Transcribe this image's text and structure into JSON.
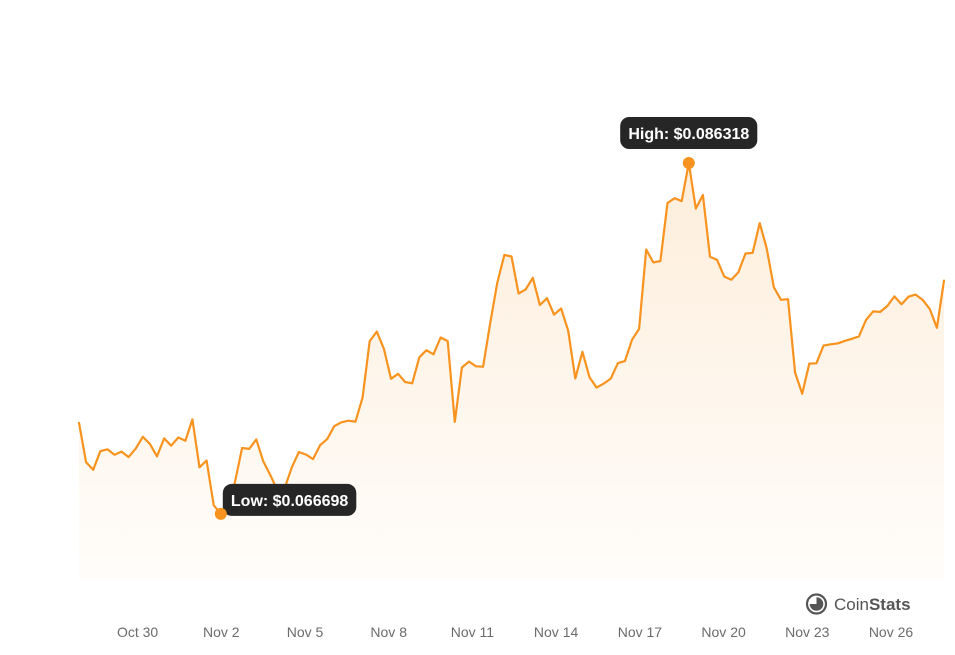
{
  "chart_data": {
    "type": "area",
    "x_ticks": [
      "Oct 30",
      "Nov 2",
      "Nov 5",
      "Nov 8",
      "Nov 11",
      "Nov 14",
      "Nov 17",
      "Nov 20",
      "Nov 23",
      "Nov 26"
    ],
    "x_tick_days": [
      2,
      5,
      8,
      11,
      14,
      17,
      20,
      23,
      26,
      29
    ],
    "x_start_day": -0.1,
    "x_end_day": 30.9,
    "series": [
      {
        "values": [
          0.07179,
          0.06958,
          0.06916,
          0.0702,
          0.07031,
          0.07,
          0.07018,
          0.06987,
          0.07035,
          0.07101,
          0.07061,
          0.06991,
          0.07092,
          0.07051,
          0.07097,
          0.07079,
          0.07198,
          0.0693,
          0.06968,
          0.06718,
          0.0667,
          0.06694,
          0.06849,
          0.07038,
          0.07033,
          0.07086,
          0.06963,
          0.06886,
          0.06799,
          0.06812,
          0.06928,
          0.07015,
          0.07002,
          0.06976,
          0.07054,
          0.07088,
          0.0716,
          0.07182,
          0.07191,
          0.07186,
          0.07321,
          0.07636,
          0.07689,
          0.07593,
          0.07425,
          0.07453,
          0.07407,
          0.074,
          0.07545,
          0.07585,
          0.07562,
          0.07656,
          0.07636,
          0.07184,
          0.07489,
          0.07521,
          0.07495,
          0.07493,
          0.07736,
          0.07963,
          0.08118,
          0.08109,
          0.07902,
          0.07925,
          0.0799,
          0.07838,
          0.07876,
          0.07784,
          0.07818,
          0.07694,
          0.07427,
          0.07576,
          0.07434,
          0.07376,
          0.07398,
          0.07426,
          0.07513,
          0.07524,
          0.07643,
          0.07704,
          0.08148,
          0.08076,
          0.08084,
          0.08408,
          0.08435,
          0.08419,
          0.08632,
          0.08377,
          0.08453,
          0.08108,
          0.0809,
          0.07997,
          0.07979,
          0.08021,
          0.08126,
          0.08129,
          0.08296,
          0.08154,
          0.07938,
          0.07867,
          0.0787,
          0.0746,
          0.07342,
          0.0751,
          0.07512,
          0.07611,
          0.07618,
          0.07623,
          0.07637,
          0.07649,
          0.07662,
          0.07754,
          0.07802,
          0.07799,
          0.07832,
          0.07886,
          0.07842,
          0.07884,
          0.07896,
          0.07866,
          0.07815,
          0.0771,
          0.07974
        ],
        "color": "#f7931e"
      }
    ],
    "ylim": [
      0.063,
      0.0904
    ],
    "annotations": [
      {
        "label": "High: $0.086318",
        "type": "max",
        "value": 0.086318
      },
      {
        "label": "Low: $0.066698",
        "type": "min",
        "value": 0.066698
      }
    ],
    "grid": false
  },
  "watermark": {
    "text_coin": "Coin",
    "text_stats": "Stats"
  }
}
